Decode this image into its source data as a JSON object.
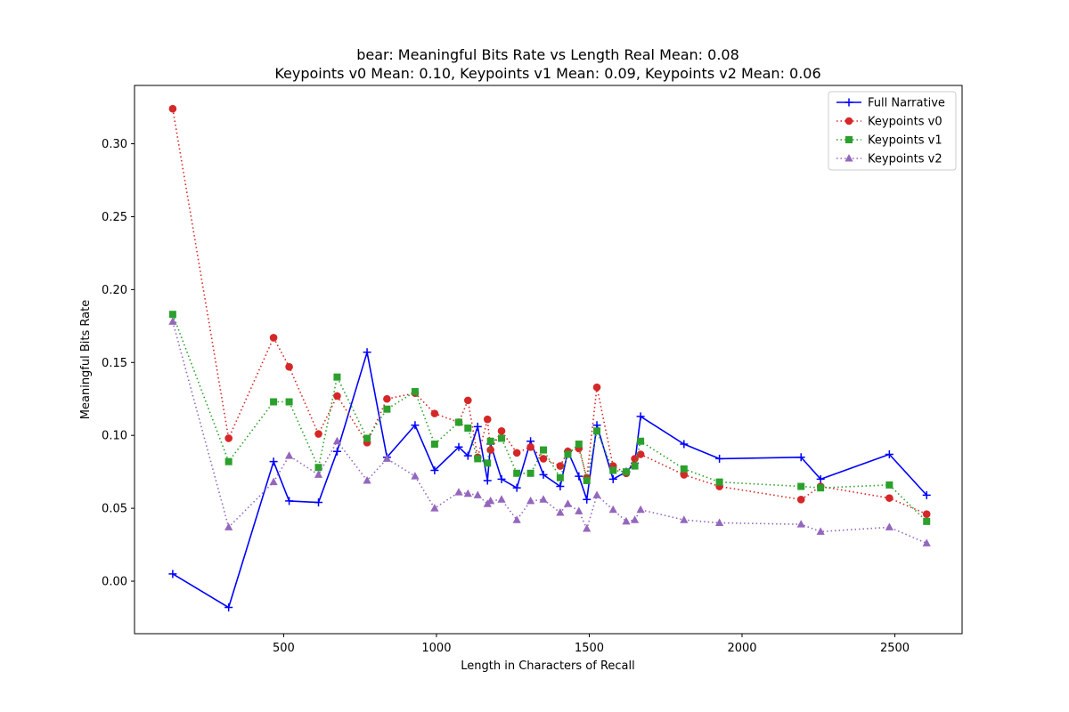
{
  "chart_data": {
    "type": "line",
    "title": "bear: Meaningful Bits Rate vs Length Real Mean: 0.08",
    "subtitle": "Keypoints v0 Mean: 0.10, Keypoints v1 Mean: 0.09, Keypoints v2 Mean: 0.06",
    "xlabel": "Length in Characters of Recall",
    "ylabel": "Meaningful Bits Rate",
    "xlim": [
      12,
      2720
    ],
    "ylim": [
      -0.036,
      0.34
    ],
    "xticks": [
      500,
      1000,
      1500,
      2000,
      2500
    ],
    "yticks": [
      0.0,
      0.05,
      0.1,
      0.15,
      0.2,
      0.25,
      0.3
    ],
    "ytick_labels": [
      "0.00",
      "0.05",
      "0.10",
      "0.15",
      "0.20",
      "0.25",
      "0.30"
    ],
    "grid": false,
    "legend_position": "top-right",
    "x": [
      137,
      320,
      467,
      518,
      614,
      675,
      773,
      838,
      930,
      994,
      1073,
      1103,
      1135,
      1167,
      1177,
      1213,
      1263,
      1308,
      1350,
      1405,
      1430,
      1466,
      1492,
      1525,
      1578,
      1621,
      1649,
      1668,
      1810,
      1926,
      2193,
      2257,
      2482,
      2604
    ],
    "series": [
      {
        "name": "Full Narrative",
        "color": "#0000ff",
        "linestyle": "solid",
        "marker": "plus",
        "values": [
          0.005,
          -0.018,
          0.082,
          0.055,
          0.054,
          0.089,
          0.157,
          0.085,
          0.107,
          0.076,
          0.092,
          0.086,
          0.106,
          0.069,
          0.094,
          0.07,
          0.064,
          0.096,
          0.073,
          0.065,
          0.089,
          0.072,
          0.056,
          0.107,
          0.07,
          0.075,
          0.081,
          0.113,
          0.094,
          0.084,
          0.085,
          0.07,
          0.087,
          0.059
        ]
      },
      {
        "name": "Keypoints v0",
        "color": "#d62728",
        "linestyle": "dotted",
        "marker": "circle",
        "values": [
          0.324,
          0.098,
          0.167,
          0.147,
          0.101,
          0.127,
          0.095,
          0.125,
          0.129,
          0.115,
          0.109,
          0.124,
          0.085,
          0.111,
          0.09,
          0.103,
          0.088,
          0.092,
          0.084,
          0.079,
          0.089,
          0.091,
          0.071,
          0.133,
          0.079,
          0.074,
          0.084,
          0.087,
          0.073,
          0.065,
          0.056,
          0.065,
          0.057,
          0.046
        ]
      },
      {
        "name": "Keypoints v1",
        "color": "#2ca02c",
        "linestyle": "dotted",
        "marker": "square",
        "values": [
          0.183,
          0.082,
          0.123,
          0.123,
          0.078,
          0.14,
          0.098,
          0.118,
          0.13,
          0.094,
          0.109,
          0.105,
          0.084,
          0.081,
          0.096,
          0.098,
          0.074,
          0.074,
          0.09,
          0.071,
          0.087,
          0.094,
          0.069,
          0.103,
          0.076,
          0.075,
          0.079,
          0.096,
          0.077,
          0.068,
          0.065,
          0.064,
          0.066,
          0.041
        ]
      },
      {
        "name": "Keypoints v2",
        "color": "#9467bd",
        "linestyle": "dotted",
        "marker": "triangle",
        "values": [
          0.178,
          0.037,
          0.068,
          0.086,
          0.073,
          0.096,
          0.069,
          0.084,
          0.072,
          0.05,
          0.061,
          0.06,
          0.059,
          0.053,
          0.055,
          0.056,
          0.042,
          0.055,
          0.056,
          0.047,
          0.053,
          0.048,
          0.036,
          0.059,
          0.049,
          0.041,
          0.042,
          0.049,
          0.042,
          0.04,
          0.039,
          0.034,
          0.037,
          0.026
        ]
      }
    ]
  }
}
